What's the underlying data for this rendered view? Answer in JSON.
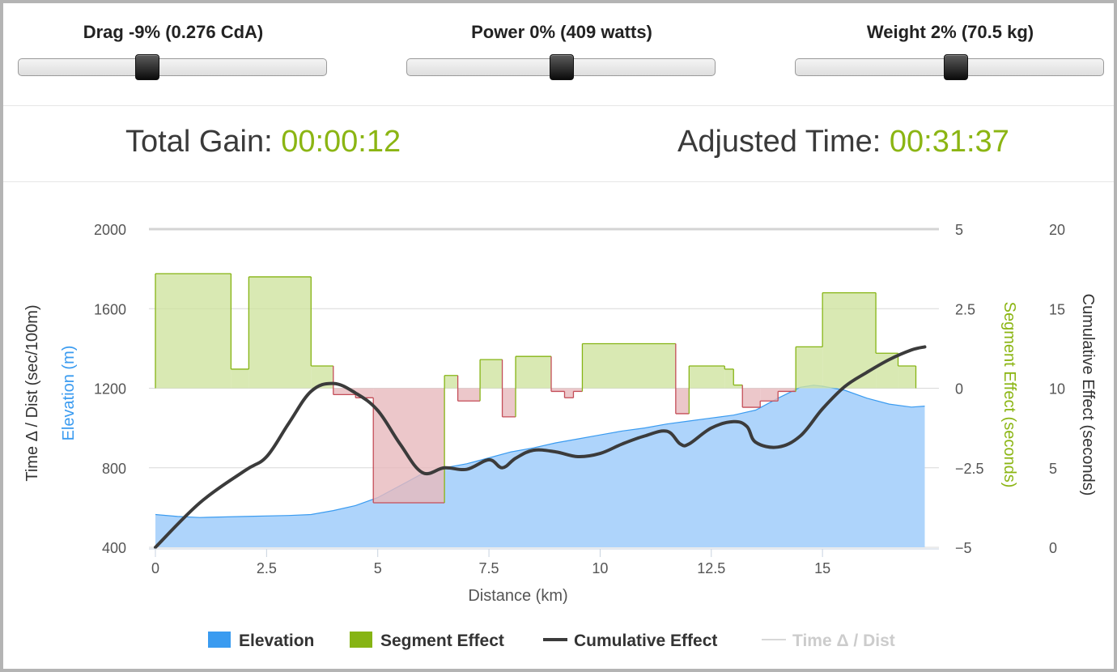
{
  "sliders": {
    "drag": {
      "label": "Drag -9% (0.276 CdA)",
      "value_fraction": 0.41
    },
    "power": {
      "label": "Power 0% (409 watts)",
      "value_fraction": 0.5
    },
    "weight": {
      "label": "Weight 2% (70.5 kg)",
      "value_fraction": 0.52
    }
  },
  "summary": {
    "total_gain_label": "Total Gain: ",
    "total_gain_value": "00:00:12",
    "adjusted_time_label": "Adjusted Time: ",
    "adjusted_time_value": "00:31:37"
  },
  "colors": {
    "accent_green": "#8bb513",
    "elevation_fill": "#aed4fb",
    "elevation_line": "#3a9bf0",
    "segment_positive_fill": "#cfe3a0",
    "segment_positive_line": "#86b414",
    "segment_negative_fill": "#e7b9bd",
    "segment_negative_line": "#c44d58",
    "cumulative_line": "#3b3b3b",
    "hidden_series": "#cccccc"
  },
  "chart_data": {
    "type": "area",
    "xlabel": "Distance (km)",
    "x_ticks": [
      "0",
      "2.5",
      "5",
      "7.5",
      "10",
      "12.5",
      "15"
    ],
    "xlim": [
      0,
      17.4
    ],
    "axes": {
      "left_title": "Time Δ / Dist (sec/100m)",
      "left_subtitle": "Elevation (m)",
      "left_ticks": [
        "400",
        "800",
        "1200",
        "1600",
        "2000"
      ],
      "left_range": [
        400,
        2000
      ],
      "right1_title": "Segment Effect (seconds)",
      "right1_ticks": [
        "−5",
        "−2.5",
        "0",
        "2.5",
        "5"
      ],
      "right1_range": [
        -5,
        5
      ],
      "right2_title": "Cumulative Effect (seconds)",
      "right2_ticks": [
        "0",
        "5",
        "10",
        "15",
        "20"
      ],
      "right2_range": [
        0,
        20
      ]
    },
    "legend": {
      "placement": "bottom",
      "items": [
        {
          "label": "Elevation",
          "color": "#3a9bf0",
          "kind": "box"
        },
        {
          "label": "Segment Effect",
          "color": "#86b414",
          "kind": "box"
        },
        {
          "label": "Cumulative Effect",
          "color": "#3b3b3b",
          "kind": "line"
        },
        {
          "label": "Time Δ / Dist",
          "color": "#cccccc",
          "kind": "line-hidden"
        }
      ]
    },
    "elevation": {
      "name": "Elevation",
      "x": [
        0,
        0.5,
        1,
        2,
        3,
        3.5,
        4,
        4.5,
        5,
        5.5,
        6,
        6.5,
        7,
        7.5,
        8,
        8.5,
        9,
        9.5,
        10,
        10.5,
        11,
        11.5,
        12,
        12.5,
        13,
        13.5,
        14,
        14.5,
        14.8,
        15,
        15.5,
        16,
        16.5,
        17,
        17.3
      ],
      "y": [
        565,
        555,
        550,
        555,
        560,
        565,
        585,
        610,
        650,
        710,
        770,
        800,
        820,
        850,
        880,
        900,
        925,
        945,
        965,
        985,
        1000,
        1020,
        1035,
        1050,
        1065,
        1090,
        1150,
        1205,
        1215,
        1210,
        1190,
        1150,
        1120,
        1105,
        1110
      ]
    },
    "segment_effect": {
      "name": "Segment Effect",
      "segments": [
        {
          "x0": 0.0,
          "x1": 1.7,
          "v": 3.6
        },
        {
          "x0": 1.7,
          "x1": 2.1,
          "v": 0.6
        },
        {
          "x0": 2.1,
          "x1": 3.5,
          "v": 3.5
        },
        {
          "x0": 3.5,
          "x1": 4.0,
          "v": 0.7
        },
        {
          "x0": 4.0,
          "x1": 4.5,
          "v": -0.2
        },
        {
          "x0": 4.5,
          "x1": 4.9,
          "v": -0.3
        },
        {
          "x0": 4.9,
          "x1": 6.5,
          "v": -3.6
        },
        {
          "x0": 6.5,
          "x1": 6.8,
          "v": 0.4
        },
        {
          "x0": 6.8,
          "x1": 7.3,
          "v": -0.4
        },
        {
          "x0": 7.3,
          "x1": 7.8,
          "v": 0.9
        },
        {
          "x0": 7.8,
          "x1": 8.1,
          "v": -0.9
        },
        {
          "x0": 8.1,
          "x1": 8.9,
          "v": 1.0
        },
        {
          "x0": 8.9,
          "x1": 9.2,
          "v": -0.1
        },
        {
          "x0": 9.2,
          "x1": 9.4,
          "v": -0.3
        },
        {
          "x0": 9.4,
          "x1": 9.6,
          "v": -0.1
        },
        {
          "x0": 9.6,
          "x1": 11.7,
          "v": 1.4
        },
        {
          "x0": 11.7,
          "x1": 12.0,
          "v": -0.8
        },
        {
          "x0": 12.0,
          "x1": 12.8,
          "v": 0.7
        },
        {
          "x0": 12.8,
          "x1": 13.0,
          "v": 0.6
        },
        {
          "x0": 13.0,
          "x1": 13.2,
          "v": 0.1
        },
        {
          "x0": 13.2,
          "x1": 13.6,
          "v": -0.6
        },
        {
          "x0": 13.6,
          "x1": 14.0,
          "v": -0.4
        },
        {
          "x0": 14.0,
          "x1": 14.4,
          "v": -0.1
        },
        {
          "x0": 14.4,
          "x1": 15.0,
          "v": 1.3
        },
        {
          "x0": 15.0,
          "x1": 16.2,
          "v": 3.0
        },
        {
          "x0": 16.2,
          "x1": 16.7,
          "v": 1.1
        },
        {
          "x0": 16.7,
          "x1": 17.1,
          "v": 0.7
        }
      ]
    },
    "cumulative_effect": {
      "name": "Cumulative Effect",
      "x": [
        0,
        1,
        2,
        2.5,
        3,
        3.5,
        4,
        4.5,
        5,
        5.5,
        6,
        6.5,
        7,
        7.5,
        7.8,
        8.1,
        8.5,
        9,
        9.5,
        10,
        10.5,
        11,
        11.5,
        11.8,
        12,
        12.5,
        13,
        13.3,
        13.5,
        14,
        14.5,
        15,
        15.5,
        16,
        16.5,
        17,
        17.3
      ],
      "y": [
        0,
        2.8,
        4.8,
        5.7,
        7.8,
        9.8,
        10.3,
        9.7,
        8.6,
        6.5,
        4.7,
        5.0,
        4.9,
        5.5,
        5.0,
        5.6,
        6.1,
        6.0,
        5.7,
        5.9,
        6.5,
        7.0,
        7.3,
        6.5,
        6.5,
        7.5,
        7.9,
        7.6,
        6.6,
        6.3,
        7.0,
        8.7,
        10.1,
        11.0,
        11.8,
        12.4,
        12.6
      ]
    }
  }
}
